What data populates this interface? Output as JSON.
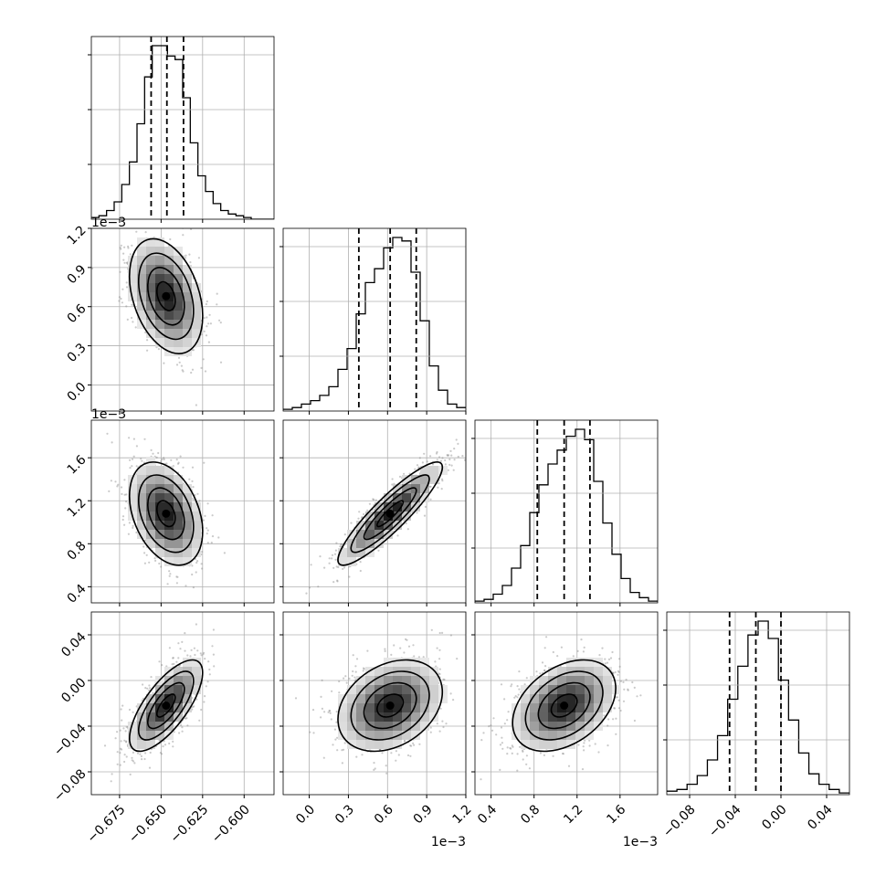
{
  "chart_data": {
    "type": "corner",
    "grid": true,
    "params": [
      {
        "range": [
          -0.692,
          -0.582
        ],
        "ticks": [
          -0.675,
          -0.65,
          -0.625,
          -0.6
        ],
        "tick_labels": [
          "−0.675",
          "−0.650",
          "−0.625",
          "−0.600"
        ],
        "offset_text": "",
        "quantiles": [
          -0.656,
          -0.6465,
          -0.6365
        ],
        "hist": [
          0.01,
          0.02,
          0.05,
          0.1,
          0.2,
          0.33,
          0.55,
          0.82,
          1.0,
          1.0,
          0.94,
          0.92,
          0.7,
          0.44,
          0.25,
          0.16,
          0.09,
          0.05,
          0.03,
          0.02,
          0.01,
          0.0,
          0.0,
          0.0
        ]
      },
      {
        "range": [
          -0.0002,
          0.0012
        ],
        "ticks": [
          0.0,
          0.0003,
          0.0006,
          0.0009,
          0.0012
        ],
        "tick_labels": [
          "0.0",
          "0.3",
          "0.6",
          "0.9",
          "1.2"
        ],
        "offset_text": "1e−3",
        "quantiles": [
          0.00038,
          0.00062,
          0.00082
        ],
        "hist": [
          0.01,
          0.02,
          0.04,
          0.06,
          0.09,
          0.14,
          0.24,
          0.36,
          0.56,
          0.74,
          0.82,
          0.94,
          1.0,
          0.98,
          0.8,
          0.52,
          0.26,
          0.12,
          0.04,
          0.02
        ]
      },
      {
        "range": [
          0.00025,
          0.00195
        ],
        "ticks": [
          0.0004,
          0.0008,
          0.0012,
          0.0016
        ],
        "tick_labels": [
          "0.4",
          "0.8",
          "1.2",
          "1.6"
        ],
        "offset_text": "1e−3",
        "quantiles": [
          0.00083,
          0.00108,
          0.00132
        ],
        "hist": [
          0.01,
          0.02,
          0.05,
          0.1,
          0.2,
          0.33,
          0.52,
          0.68,
          0.8,
          0.88,
          0.96,
          1.0,
          0.94,
          0.7,
          0.46,
          0.28,
          0.14,
          0.06,
          0.03,
          0.01
        ]
      },
      {
        "range": [
          -0.1,
          0.06
        ],
        "ticks": [
          -0.08,
          -0.04,
          0.0,
          0.04
        ],
        "tick_labels": [
          "−0.08",
          "−0.04",
          "0.00",
          "0.04"
        ],
        "offset_text": "",
        "quantiles": [
          -0.045,
          -0.022,
          0.0
        ],
        "hist": [
          0.02,
          0.03,
          0.06,
          0.11,
          0.2,
          0.34,
          0.55,
          0.74,
          0.92,
          1.0,
          0.9,
          0.66,
          0.43,
          0.24,
          0.12,
          0.06,
          0.03,
          0.01
        ]
      }
    ],
    "pairs": [
      {
        "x": 0,
        "y": 1,
        "mean": [
          -0.647,
          0.00068
        ],
        "sd": [
          0.011,
          0.00022
        ],
        "rho": -0.35
      },
      {
        "x": 0,
        "y": 2,
        "mean": [
          -0.647,
          0.00108
        ],
        "sd": [
          0.011,
          0.00024
        ],
        "rho": -0.35
      },
      {
        "x": 1,
        "y": 2,
        "mean": [
          0.00062,
          0.00108
        ],
        "sd": [
          0.0002,
          0.00024
        ],
        "rho": 0.9
      },
      {
        "x": 0,
        "y": 3,
        "mean": [
          -0.647,
          -0.022
        ],
        "sd": [
          0.011,
          0.02
        ],
        "rho": 0.72
      },
      {
        "x": 1,
        "y": 3,
        "mean": [
          0.00062,
          -0.022
        ],
        "sd": [
          0.0002,
          0.02
        ],
        "rho": 0.3
      },
      {
        "x": 2,
        "y": 3,
        "mean": [
          0.00108,
          -0.022
        ],
        "sd": [
          0.00024,
          0.02
        ],
        "rho": 0.38
      }
    ],
    "contour_levels_sigma": [
      0.5,
      1.0,
      1.5,
      2.0
    ]
  }
}
